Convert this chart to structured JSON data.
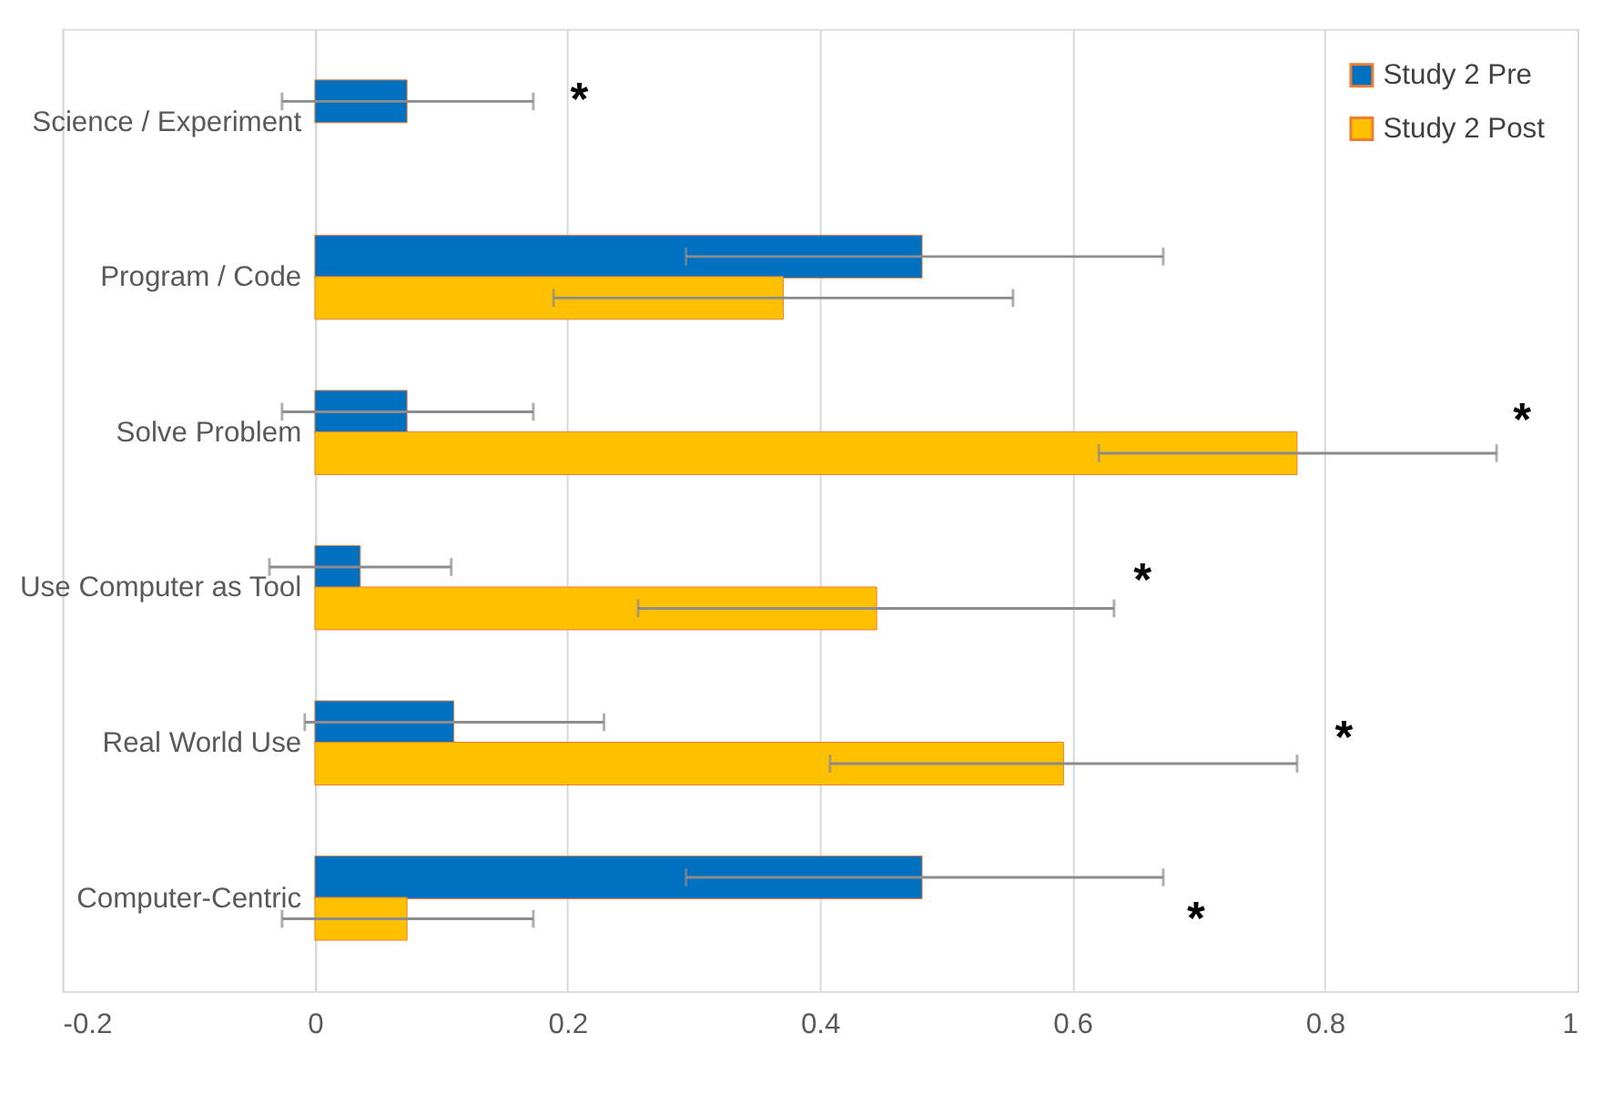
{
  "chart_data": {
    "type": "bar",
    "orientation": "horizontal",
    "categories": [
      "Science / Experiment",
      "Program / Code",
      "Solve Problem",
      "Use Computer as Tool",
      "Real World Use",
      "Computer-Centric"
    ],
    "series": [
      {
        "name": "Study 2 Pre",
        "color": "#0070c0",
        "values": [
          0.073,
          0.481,
          0.073,
          0.036,
          0.11,
          0.481
        ],
        "errors": [
          [
            -0.026,
            0.173
          ],
          [
            0.294,
            0.672
          ],
          [
            -0.026,
            0.173
          ],
          [
            -0.036,
            0.108
          ],
          [
            -0.008,
            0.229
          ],
          [
            0.294,
            0.672
          ]
        ]
      },
      {
        "name": "Study 2 Post",
        "color": "#ffc000",
        "values": [
          null,
          0.371,
          0.778,
          0.445,
          0.593,
          0.073
        ],
        "errors": [
          null,
          [
            0.189,
            0.553
          ],
          [
            0.621,
            0.936
          ],
          [
            0.256,
            0.633
          ],
          [
            0.408,
            0.778
          ],
          [
            -0.026,
            0.173
          ]
        ]
      }
    ],
    "xlim": [
      -0.2,
      1
    ],
    "xticks": [
      -0.2,
      0,
      0.2,
      0.4,
      0.6,
      0.8,
      1
    ],
    "grid": "x",
    "legend": "top right",
    "annotations": [
      "*",
      "*",
      "*",
      "*",
      "*"
    ]
  }
}
